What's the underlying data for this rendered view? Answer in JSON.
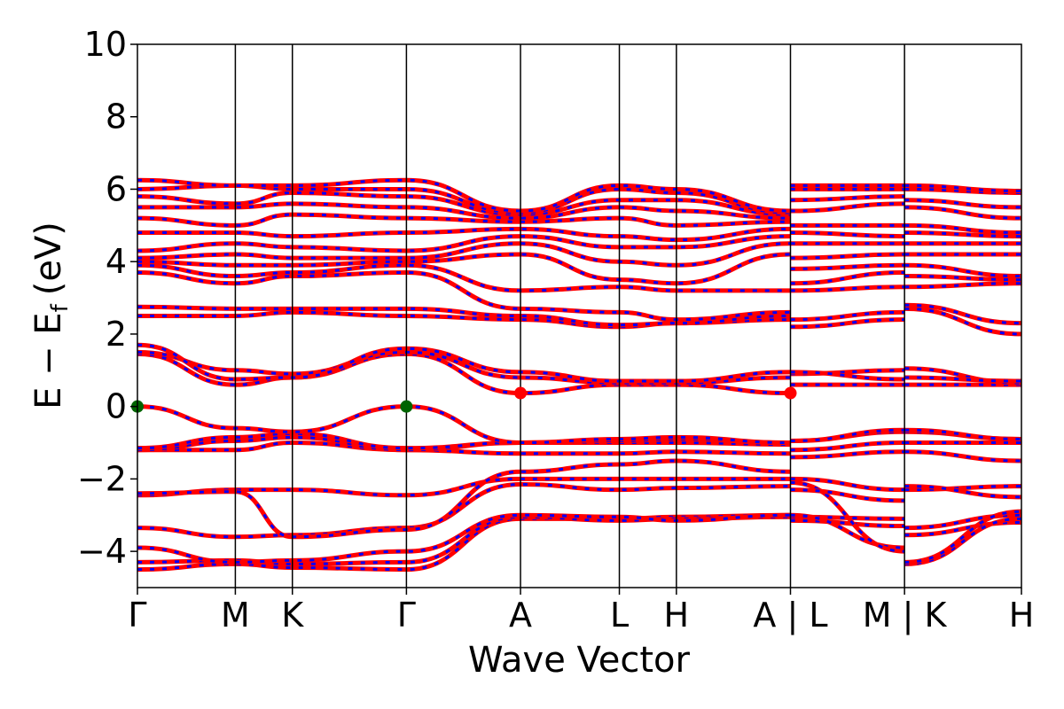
{
  "chart_data": {
    "type": "line",
    "xlabel": "Wave Vector",
    "ylabel_main": "E − E",
    "ylabel_sub": "f",
    "ylabel_unit": "(eV)",
    "ylim": [
      -5,
      10
    ],
    "yticks": [
      -4,
      -2,
      0,
      2,
      4,
      6,
      8,
      10
    ],
    "ytick_labels": [
      "−4",
      "−2",
      "0",
      "2",
      "4",
      "6",
      "8",
      "10"
    ],
    "xlim": [
      0,
      9.3
    ],
    "kpoints": [
      {
        "x": 0.0,
        "label": "Γ"
      },
      {
        "x": 1.03,
        "label": "M"
      },
      {
        "x": 1.63,
        "label": "K"
      },
      {
        "x": 2.83,
        "label": "Γ"
      },
      {
        "x": 4.03,
        "label": "A"
      },
      {
        "x": 5.07,
        "label": "L"
      },
      {
        "x": 5.67,
        "label": "H"
      },
      {
        "x": 6.87,
        "label": "A | L"
      },
      {
        "x": 8.07,
        "label": "M | K"
      },
      {
        "x": 9.3,
        "label": "H"
      }
    ],
    "line_colors": {
      "spin_up": "#ff0000",
      "spin_down": "#0000ff",
      "vbm_marker": "#006400",
      "cbm_marker": "#ff0000"
    },
    "vbm": [
      {
        "x": 0.0,
        "y": 0.0
      },
      {
        "x": 2.83,
        "y": 0.0
      }
    ],
    "cbm": [
      {
        "x": 4.03,
        "y": 0.37
      },
      {
        "x": 6.87,
        "y": 0.37
      }
    ],
    "bands": [
      [
        -4.5,
        -4.35,
        -4.45,
        -4.5,
        -3.1,
        -3.1,
        -3.05,
        -3.0,
        -3.05,
        -3.1,
        -3.35,
        -3.0
      ],
      [
        -4.3,
        -4.25,
        -4.35,
        -4.3,
        -3.05,
        -3.15,
        -3.1,
        -3.05,
        -3.15,
        -3.3,
        -3.55,
        -3.2
      ],
      [
        -3.9,
        -4.3,
        -4.25,
        -4.0,
        -3.0,
        -3.05,
        -3.15,
        -3.0,
        -3.0,
        -3.9,
        -4.35,
        -3.1
      ],
      [
        -3.35,
        -3.6,
        -3.55,
        -3.35,
        -2.15,
        -2.3,
        -2.25,
        -2.2,
        -2.1,
        -4.0,
        -4.3,
        -2.9
      ],
      [
        -2.45,
        -2.3,
        -2.3,
        -2.45,
        -2.0,
        -2.0,
        -2.0,
        -2.0,
        -2.3,
        -2.6,
        -2.3,
        -2.2
      ],
      [
        -2.4,
        -2.35,
        -3.6,
        -3.4,
        -1.8,
        -1.6,
        -1.5,
        -1.8,
        -2.0,
        -2.3,
        -2.2,
        -2.5
      ],
      [
        -1.2,
        -1.2,
        -1.0,
        -1.2,
        -1.3,
        -1.3,
        -1.25,
        -1.3,
        -1.4,
        -1.25,
        -1.25,
        -1.5
      ],
      [
        -1.2,
        -0.95,
        -0.85,
        -1.2,
        -1.0,
        -1.0,
        -1.0,
        -1.05,
        -1.2,
        -1.0,
        -1.0,
        -1.0
      ],
      [
        -1.15,
        -0.85,
        -0.75,
        -1.15,
        -1.0,
        -0.95,
        -0.9,
        -1.0,
        -0.95,
        -0.7,
        -0.7,
        -0.9
      ],
      [
        0.0,
        -0.6,
        -0.7,
        0.0,
        -1.0,
        -0.9,
        -0.85,
        -1.0,
        -0.95,
        -0.65,
        -0.65,
        -0.9
      ],
      [
        1.45,
        0.6,
        0.8,
        1.45,
        0.37,
        0.6,
        0.6,
        0.37,
        0.6,
        0.6,
        0.6,
        0.6
      ],
      [
        1.5,
        1.0,
        0.9,
        1.5,
        0.8,
        0.65,
        0.65,
        0.8,
        0.9,
        1.0,
        1.05,
        0.65
      ],
      [
        1.7,
        0.75,
        0.8,
        1.6,
        0.95,
        0.7,
        0.7,
        0.95,
        0.95,
        0.75,
        0.8,
        0.7
      ],
      [
        2.5,
        2.5,
        2.6,
        2.5,
        2.4,
        2.2,
        2.3,
        2.4,
        2.2,
        2.4,
        2.7,
        2.0
      ],
      [
        2.75,
        2.7,
        2.7,
        2.7,
        2.5,
        2.25,
        2.3,
        2.5,
        2.4,
        2.6,
        2.8,
        2.3
      ],
      [
        3.7,
        3.4,
        3.6,
        3.7,
        2.7,
        2.6,
        2.4,
        2.6,
        3.2,
        3.3,
        3.3,
        3.4
      ],
      [
        3.9,
        3.6,
        3.7,
        3.9,
        3.2,
        3.3,
        3.2,
        3.2,
        3.4,
        3.7,
        3.6,
        3.5
      ],
      [
        4.0,
        3.9,
        3.9,
        4.0,
        4.2,
        3.5,
        3.4,
        4.2,
        3.8,
        3.9,
        3.9,
        3.6
      ],
      [
        4.1,
        4.2,
        4.1,
        4.1,
        4.5,
        4.0,
        3.9,
        4.5,
        4.1,
        4.2,
        4.2,
        4.2
      ],
      [
        4.3,
        4.5,
        4.4,
        4.3,
        4.7,
        4.4,
        4.4,
        4.7,
        4.5,
        4.5,
        4.5,
        4.5
      ],
      [
        4.8,
        4.8,
        4.7,
        4.8,
        4.9,
        4.7,
        4.6,
        4.9,
        4.8,
        4.7,
        4.8,
        4.7
      ],
      [
        5.2,
        5.0,
        5.3,
        5.2,
        5.1,
        5.2,
        5.0,
        5.1,
        5.0,
        5.0,
        5.0,
        4.8
      ],
      [
        5.5,
        5.5,
        5.6,
        5.5,
        5.2,
        5.5,
        5.4,
        5.2,
        5.4,
        5.6,
        5.5,
        5.2
      ],
      [
        5.8,
        5.6,
        5.9,
        5.8,
        5.3,
        5.7,
        5.7,
        5.3,
        5.7,
        5.8,
        5.7,
        5.5
      ],
      [
        6.0,
        6.1,
        6.0,
        6.0,
        5.35,
        6.0,
        5.9,
        5.35,
        6.0,
        6.0,
        6.0,
        5.9
      ],
      [
        6.25,
        6.1,
        6.1,
        6.25,
        5.4,
        6.1,
        6.0,
        5.4,
        6.1,
        6.1,
        6.1,
        5.95
      ]
    ]
  }
}
